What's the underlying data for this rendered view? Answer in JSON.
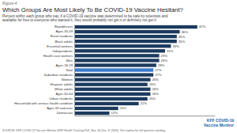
{
  "chart_data": {
    "type": "bar",
    "orientation": "horizontal",
    "title": "Which Groups Are Most Likely To Be COVID-19 Vaccine Hesitant?",
    "subtitle": "Percent within each group who say, if a COVID-19 vaccine was determined to be safe by scientists and\navailable for free to everyone who wanted it, they would probably not get it or definitely not get it:",
    "annotations": [
      "Figure 4",
      "SOURCE: KFF COVID-19 Vaccine Monitor (KFF Health Tracking Poll, Nov. 30-Dec. 8, 2020). See topline for full question wording.",
      "KFF COVID-19",
      "Vaccine Monitor"
    ],
    "categories": [
      "Republicans",
      "Ages 30-49",
      "Rural residents",
      "Black adults",
      "Essential workers",
      "Independents",
      "Health care workers",
      "Men",
      "Ages 18-29",
      "Total",
      "Suburban residents",
      "Women",
      "Hispanic adults",
      "White adults",
      "Ages 50-64",
      "Urban residents",
      "Household with serious health condition",
      "Ages 65 and over",
      "Democrats"
    ],
    "values": [
      42,
      36,
      35,
      35,
      33,
      31,
      29,
      29,
      28,
      27,
      27,
      26,
      25,
      26,
      26,
      25,
      22,
      15,
      12
    ],
    "value_labels": [
      "42%",
      "36%",
      "35%",
      "35%",
      "33%",
      "31%",
      "29%",
      "29%",
      "28%",
      "27%",
      "27%",
      "26%",
      "25%",
      "26%",
      "26%",
      "25%",
      "22%",
      "15%",
      "12%"
    ],
    "colors": [
      "#1c3a5e",
      "#1c3a5e",
      "#1c3a5e",
      "#1c3a5e",
      "#1c3a5e",
      "#1c3a5e",
      "#1c3a5e",
      "#1c3a5e",
      "#1c3a5e",
      "#3a78c9",
      "#1c3a5e",
      "#1c3a5e",
      "#1c3a5e",
      "#1c3a5e",
      "#1c3a5e",
      "#1c3a5e",
      "#1c3a5e",
      "#1c3a5e",
      "#1c3a5e"
    ],
    "xlim": [
      0,
      48
    ],
    "tick_labels": "y",
    "grid": false
  }
}
